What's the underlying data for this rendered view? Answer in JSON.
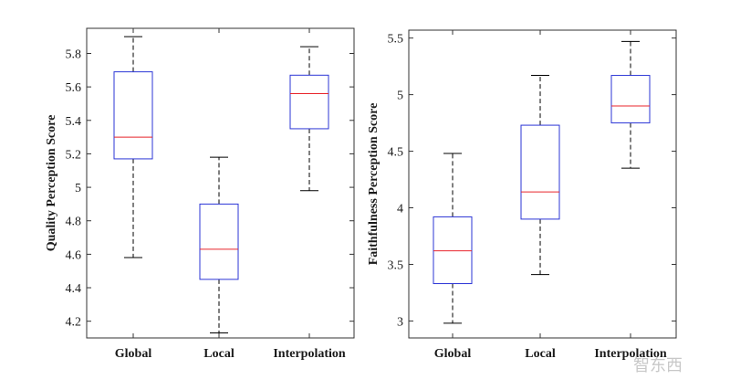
{
  "chart_data": [
    {
      "type": "box",
      "ylabel": "Quality Perception Score",
      "categories": [
        "Global",
        "Local",
        "Interpolation"
      ],
      "ylim": [
        4.1,
        5.95
      ],
      "yticks": [
        4.2,
        4.4,
        4.6,
        4.8,
        5.0,
        5.2,
        5.4,
        5.6,
        5.8
      ],
      "ytick_labels": [
        "4.2",
        "4.4",
        "4.6",
        "4.8",
        "5",
        "5.2",
        "5.4",
        "5.6",
        "5.8"
      ],
      "boxes": [
        {
          "category": "Global",
          "min": 4.58,
          "q1": 5.17,
          "median": 5.3,
          "q3": 5.69,
          "max": 5.9
        },
        {
          "category": "Local",
          "min": 4.13,
          "q1": 4.45,
          "median": 4.63,
          "q3": 4.9,
          "max": 5.18
        },
        {
          "category": "Interpolation",
          "min": 4.98,
          "q1": 5.35,
          "median": 5.56,
          "q3": 5.67,
          "max": 5.84
        }
      ]
    },
    {
      "type": "box",
      "ylabel": "Faithfulness Perception Score",
      "categories": [
        "Global",
        "Local",
        "Interpolation"
      ],
      "ylim": [
        2.85,
        5.57
      ],
      "yticks": [
        3.0,
        3.5,
        4.0,
        4.5,
        5.0,
        5.5
      ],
      "ytick_labels": [
        "3",
        "3.5",
        "4",
        "4.5",
        "5",
        "5.5"
      ],
      "boxes": [
        {
          "category": "Global",
          "min": 2.98,
          "q1": 3.33,
          "median": 3.62,
          "q3": 3.92,
          "max": 4.48
        },
        {
          "category": "Local",
          "min": 3.41,
          "q1": 3.9,
          "median": 4.14,
          "q3": 4.73,
          "max": 5.17
        },
        {
          "category": "Interpolation",
          "min": 4.35,
          "q1": 4.75,
          "median": 4.9,
          "q3": 5.17,
          "max": 5.47
        }
      ]
    }
  ],
  "colors": {
    "box": "#2b35d6",
    "median": "#e8252b",
    "whisker": "#000000",
    "axis": "#333333"
  },
  "watermark": "智东西"
}
